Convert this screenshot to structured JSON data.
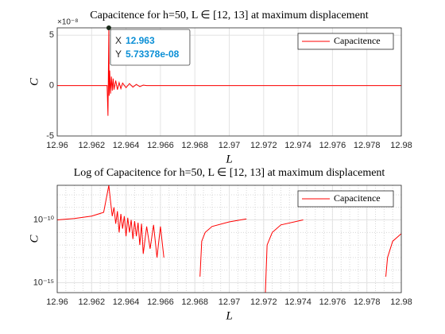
{
  "chart_data": [
    {
      "type": "line",
      "title": "Capacitence for h=50, L ∈ [12, 13] at maximum displacement",
      "xlabel": "L",
      "ylabel": "C",
      "y_exponent": "×10⁻⁸",
      "xlim": [
        12.96,
        12.98
      ],
      "xticks": [
        12.96,
        12.962,
        12.964,
        12.966,
        12.968,
        12.97,
        12.972,
        12.974,
        12.976,
        12.978,
        12.98
      ],
      "ylim": [
        -5e-08,
        5.73378e-08
      ],
      "yticks": [
        {
          "value": -5e-08,
          "label": "-5"
        },
        {
          "value": 0,
          "label": "0"
        },
        {
          "value": 5e-08,
          "label": "5"
        }
      ],
      "grid": true,
      "minor_grid": false,
      "log_y": false,
      "legend": "upper right",
      "series": [
        {
          "name": "Capacitence",
          "color": "#ff0000",
          "x": [
            12.96,
            12.9629,
            12.96295,
            12.963,
            12.96302,
            12.96305,
            12.9631,
            12.96315,
            12.9632,
            12.96325,
            12.9633,
            12.9634,
            12.9635,
            12.9636,
            12.9637,
            12.9638,
            12.964,
            12.9642,
            12.9644,
            12.9646,
            12.9648,
            12.965,
            12.9652,
            12.98
          ],
          "values": [
            0,
            0,
            -3e-08,
            5.73378e-08,
            -1e-08,
            1.5e-08,
            -8e-09,
            9e-09,
            -5e-09,
            7e-09,
            -4e-09,
            5e-09,
            -4e-09,
            3e-09,
            -3e-09,
            2.5e-09,
            -2e-09,
            2e-09,
            -1.5e-09,
            1.2e-09,
            -1e-09,
            5e-10,
            0,
            0
          ]
        }
      ],
      "datatip": {
        "x_name": "X",
        "y_name": "Y",
        "x": 12.963,
        "y": {
          "value": 5.73378e-08,
          "label": "5.73378e-08"
        }
      }
    },
    {
      "type": "line",
      "title": "Log of Capacitence for h=50, L ∈ [12, 13] at maximum displacement",
      "xlabel": "L",
      "ylabel": "C",
      "xlim": [
        12.96,
        12.98
      ],
      "xticks": [
        12.96,
        12.962,
        12.964,
        12.966,
        12.968,
        12.97,
        12.972,
        12.974,
        12.976,
        12.978,
        12.98
      ],
      "ylim": [
        1.6e-16,
        5.73378e-08
      ],
      "yticks": [
        {
          "value": 1e-15,
          "label": "10⁻¹⁵"
        },
        {
          "value": 1e-10,
          "label": "10⁻¹⁰"
        }
      ],
      "grid": true,
      "minor_grid": true,
      "log_y": true,
      "legend": "upper right",
      "series": [
        {
          "name": "Capacitence",
          "color": "#ff0000",
          "x": [
            12.96,
            12.961,
            12.962,
            12.9627,
            12.963,
            12.9631,
            12.9632,
            12.9633,
            12.9634,
            12.9635,
            12.9636,
            12.9637,
            12.9638,
            12.9639,
            12.964,
            12.9641,
            12.9642,
            12.9643,
            12.9644,
            12.9645,
            12.9646,
            12.9647,
            12.9648,
            12.9649,
            12.965,
            12.9652,
            12.9654,
            12.9656,
            12.9658,
            12.966,
            12.9662,
            12.967,
            12.9683,
            12.9684,
            12.9686,
            12.969,
            12.97,
            12.971,
            12.9715,
            12.9721,
            12.9722,
            12.9725,
            12.973,
            12.9743,
            12.976,
            12.9791,
            12.9792,
            12.9795,
            12.98
          ],
          "values": [
            1e-10,
            1.3e-10,
            2e-10,
            4e-10,
            5.73378e-08,
            3e-09,
            2e-10,
            1e-09,
            5e-11,
            5e-10,
            1e-11,
            3e-10,
            2e-11,
            2e-10,
            5e-12,
            1.5e-10,
            1e-11,
            1e-10,
            3e-12,
            8e-11,
            5e-12,
            6e-11,
            1e-12,
            5e-11,
            2e-13,
            3e-11,
            5e-13,
            4e-11,
            1e-13,
            3e-11,
            1e-13,
            null,
            3e-15,
            2e-12,
            1e-11,
            3e-11,
            7e-11,
            1.2e-10,
            null,
            1.6e-16,
            1e-12,
            1e-11,
            4e-11,
            1e-10,
            null,
            3e-15,
            1e-13,
            2e-12,
            8e-12
          ]
        }
      ]
    }
  ]
}
